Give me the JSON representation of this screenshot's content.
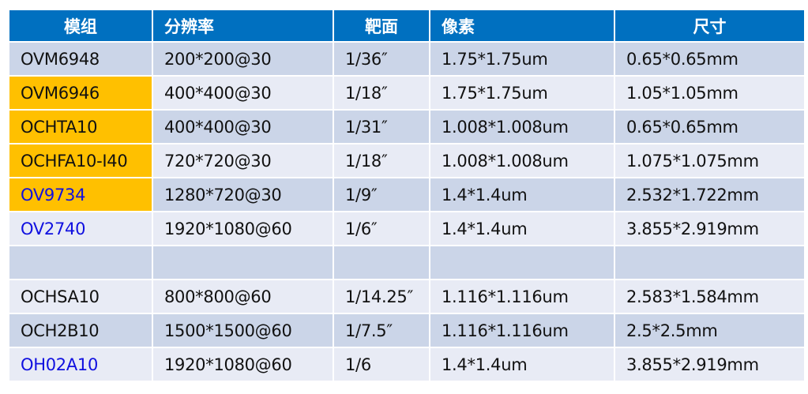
{
  "headers": [
    "模组",
    "分辨率",
    "靶面",
    "像素",
    "尺寸"
  ],
  "colors": {
    "header": "#0070c0",
    "row_dark": "#cbd5e8",
    "row_light": "#e8ebf5",
    "highlight": "#ffc000",
    "link_text": "#1010e0"
  },
  "rows": [
    {
      "cells": [
        "OVM6948",
        "200*200@30",
        "1/36″",
        "1.75*1.75um",
        "0.65*0.65mm"
      ],
      "highlight": false,
      "blue": false
    },
    {
      "cells": [
        "OVM6946",
        "400*400@30",
        "1/18″",
        "1.75*1.75um",
        "1.05*1.05mm"
      ],
      "highlight": true,
      "blue": false
    },
    {
      "cells": [
        "OCHTA10",
        "400*400@30",
        "1/31″",
        "1.008*1.008um",
        "0.65*0.65mm"
      ],
      "highlight": true,
      "blue": false
    },
    {
      "cells": [
        "OCHFA10-I40",
        "720*720@30",
        "1/18″",
        "1.008*1.008um",
        "1.075*1.075mm"
      ],
      "highlight": true,
      "blue": false
    },
    {
      "cells": [
        "OV9734",
        "1280*720@30",
        "1/9″",
        "1.4*1.4um",
        "2.532*1.722mm"
      ],
      "highlight": true,
      "blue": true
    },
    {
      "cells": [
        "OV2740",
        "1920*1080@60",
        "1/6″",
        "1.4*1.4um",
        "3.855*2.919mm"
      ],
      "highlight": false,
      "blue": true
    },
    {
      "cells": [
        "",
        "",
        "",
        "",
        ""
      ],
      "highlight": false,
      "blue": false,
      "blank": true
    },
    {
      "cells": [
        "OCHSA10",
        "800*800@60",
        "1/14.25″",
        "1.116*1.116um",
        "2.583*1.584mm"
      ],
      "highlight": false,
      "blue": false
    },
    {
      "cells": [
        "OCH2B10",
        "1500*1500@60",
        "1/7.5″",
        "1.116*1.116um",
        "2.5*2.5mm"
      ],
      "highlight": false,
      "blue": false
    },
    {
      "cells": [
        "OH02A10",
        "1920*1080@60",
        "1/6",
        "1.4*1.4um",
        "3.855*2.919mm"
      ],
      "highlight": false,
      "blue": true
    }
  ]
}
